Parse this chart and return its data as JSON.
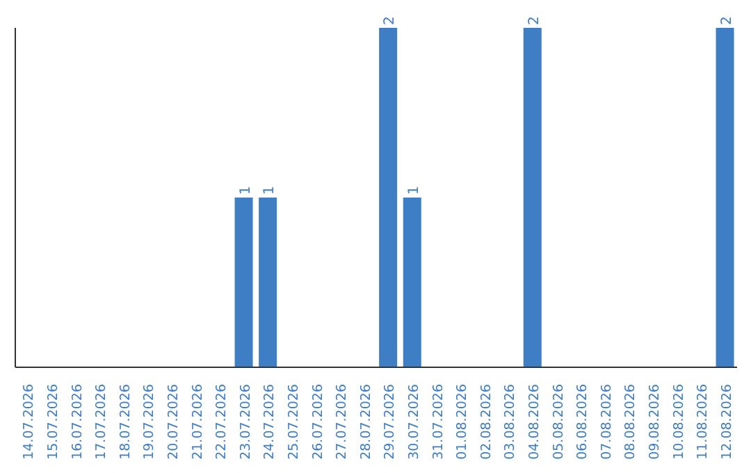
{
  "chart_data": {
    "type": "bar",
    "categories": [
      "14.07.2026",
      "15.07.2026",
      "16.07.2026",
      "17.07.2026",
      "18.07.2026",
      "19.07.2026",
      "20.07.2026",
      "21.07.2026",
      "22.07.2026",
      "23.07.2026",
      "24.07.2026",
      "25.07.2026",
      "26.07.2026",
      "27.07.2026",
      "28.07.2026",
      "29.07.2026",
      "30.07.2026",
      "31.07.2026",
      "01.08.2026",
      "02.08.2026",
      "03.08.2026",
      "04.08.2026",
      "05.08.2026",
      "06.08.2026",
      "07.08.2026",
      "08.08.2026",
      "09.08.2026",
      "10.08.2026",
      "11.08.2026",
      "12.08.2026"
    ],
    "values": [
      0,
      0,
      0,
      0,
      0,
      0,
      0,
      0,
      0,
      1,
      1,
      0,
      0,
      0,
      0,
      2,
      1,
      0,
      0,
      0,
      0,
      2,
      0,
      0,
      0,
      0,
      0,
      0,
      0,
      2
    ],
    "value_labels": [
      null,
      null,
      null,
      null,
      null,
      null,
      null,
      null,
      null,
      "1",
      "1",
      null,
      null,
      null,
      null,
      "2",
      "1",
      null,
      null,
      null,
      null,
      "2",
      null,
      null,
      null,
      null,
      null,
      null,
      null,
      "2"
    ],
    "color": "#3d7ec4",
    "tick_labels": "x"
  }
}
